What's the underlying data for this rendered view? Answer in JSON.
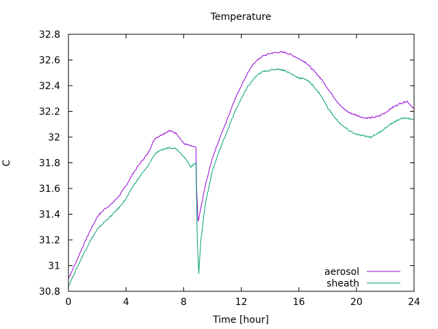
{
  "chart_data": {
    "type": "line",
    "title": "Temperature",
    "xlabel": "Time [hour]",
    "ylabel": "C",
    "xlim": [
      0,
      24
    ],
    "ylim": [
      30.8,
      32.8
    ],
    "xticks": [
      0,
      4,
      8,
      12,
      16,
      20,
      24
    ],
    "yticks": [
      30.8,
      31,
      31.2,
      31.4,
      31.6,
      31.8,
      32,
      32.2,
      32.4,
      32.6,
      32.8
    ],
    "ytick_labels": [
      "30.8",
      "31",
      "31.2",
      "31.4",
      "31.6",
      "31.8",
      "32",
      "32.2",
      "32.4",
      "32.6",
      "32.8"
    ],
    "grid": false,
    "legend_position": "bottom-right",
    "series": [
      {
        "name": "aerosol",
        "color": "#9400d3",
        "x": [
          0,
          0.5,
          1,
          1.5,
          2,
          2.5,
          3,
          3.5,
          4,
          4.5,
          5,
          5.5,
          6,
          6.5,
          7,
          7.5,
          8,
          8.5,
          8.85,
          8.9,
          9.0,
          9.2,
          9.5,
          10,
          10.5,
          11,
          11.5,
          12,
          12.5,
          13,
          13.5,
          14,
          14.5,
          15,
          15.5,
          16,
          16.5,
          17,
          17.5,
          18,
          18.5,
          19,
          19.5,
          20,
          20.5,
          21,
          21.5,
          22,
          22.5,
          23,
          23.5,
          24
        ],
        "y": [
          30.9,
          31.02,
          31.15,
          31.27,
          31.38,
          31.44,
          31.48,
          31.54,
          31.62,
          31.72,
          31.8,
          31.87,
          31.99,
          32.02,
          32.05,
          32.03,
          31.95,
          31.93,
          31.92,
          31.6,
          31.34,
          31.45,
          31.62,
          31.84,
          31.99,
          32.13,
          32.28,
          32.4,
          32.51,
          32.59,
          32.63,
          32.65,
          32.66,
          32.66,
          32.64,
          32.61,
          32.58,
          32.52,
          32.46,
          32.38,
          32.3,
          32.23,
          32.19,
          32.17,
          32.15,
          32.15,
          32.16,
          32.19,
          32.23,
          32.26,
          32.28,
          32.22
        ]
      },
      {
        "name": "sheath",
        "color": "#009e73",
        "x": [
          0,
          0.5,
          1,
          1.5,
          2,
          2.5,
          3,
          3.5,
          4,
          4.5,
          5,
          5.5,
          6,
          6.5,
          7,
          7.5,
          8,
          8.5,
          8.85,
          8.95,
          9.05,
          9.2,
          9.5,
          10,
          10.5,
          11,
          11.5,
          12,
          12.5,
          13,
          13.5,
          14,
          14.5,
          15,
          15.5,
          16,
          16.5,
          17,
          17.5,
          18,
          18.5,
          19,
          19.5,
          20,
          20.5,
          21,
          21.5,
          22,
          22.5,
          23,
          23.5,
          24
        ],
        "y": [
          30.84,
          30.96,
          31.08,
          31.19,
          31.28,
          31.34,
          31.39,
          31.45,
          31.52,
          31.62,
          31.7,
          31.77,
          31.87,
          31.9,
          31.92,
          31.91,
          31.85,
          31.77,
          31.8,
          31.2,
          30.94,
          31.2,
          31.48,
          31.74,
          31.9,
          32.04,
          32.18,
          32.3,
          32.4,
          32.47,
          32.51,
          32.52,
          32.53,
          32.52,
          32.49,
          32.46,
          32.45,
          32.4,
          32.33,
          32.23,
          32.15,
          32.09,
          32.05,
          32.02,
          32.01,
          32.0,
          32.03,
          32.07,
          32.11,
          32.14,
          32.15,
          32.13
        ]
      }
    ]
  }
}
